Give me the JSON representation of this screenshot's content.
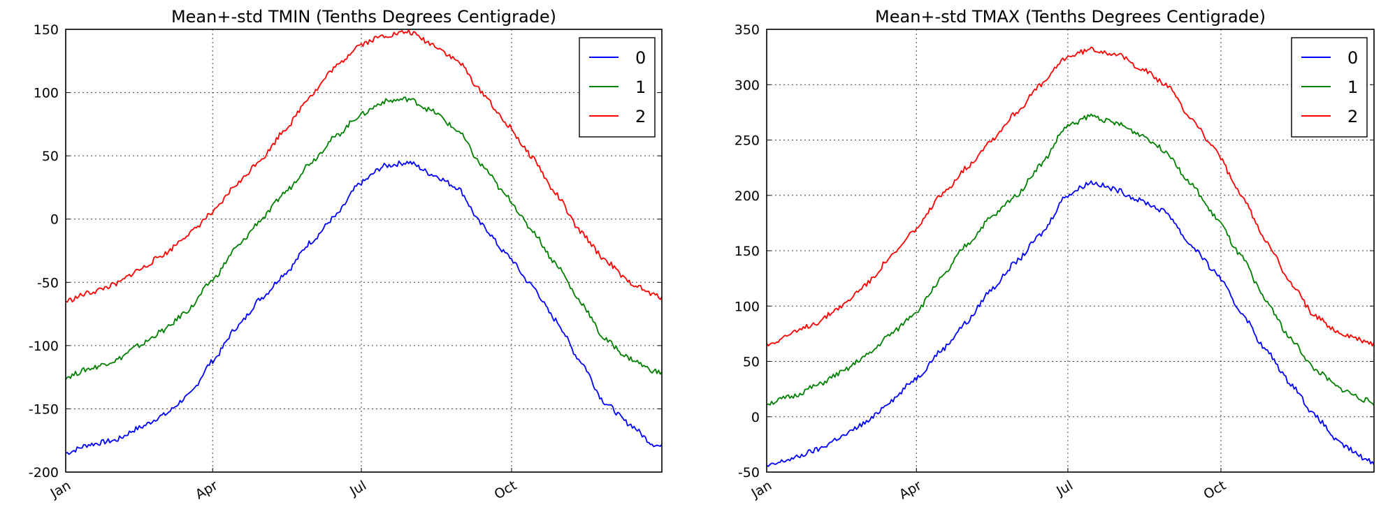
{
  "chart_data": [
    {
      "type": "line",
      "title": "Mean+-std   TMIN (Tenths Degrees Centigrade)",
      "xlabel": "",
      "ylabel": "",
      "x_ticks": [
        "Jan",
        "Apr",
        "Jul",
        "Oct"
      ],
      "x_tick_days": [
        0,
        90,
        181,
        273
      ],
      "y_ticks": [
        -200,
        -150,
        -100,
        -50,
        0,
        50,
        100,
        150
      ],
      "ylim": [
        -200,
        150
      ],
      "xlim": [
        0,
        365
      ],
      "grid": true,
      "legend_position": "top-right",
      "series": [
        {
          "name": "0",
          "color": "#0000ff",
          "x": [
            0,
            15,
            30,
            45,
            60,
            75,
            90,
            105,
            120,
            135,
            150,
            165,
            180,
            195,
            210,
            225,
            240,
            255,
            270,
            285,
            300,
            315,
            330,
            345,
            360,
            365
          ],
          "y": [
            -185,
            -178,
            -175,
            -165,
            -155,
            -140,
            -112,
            -85,
            -62,
            -42,
            -18,
            2,
            28,
            42,
            45,
            35,
            25,
            -5,
            -28,
            -52,
            -80,
            -112,
            -145,
            -162,
            -178,
            -180
          ]
        },
        {
          "name": "1",
          "color": "#008000",
          "x": [
            0,
            15,
            30,
            45,
            60,
            75,
            90,
            105,
            120,
            135,
            150,
            165,
            180,
            195,
            210,
            225,
            240,
            255,
            270,
            285,
            300,
            315,
            330,
            345,
            360,
            365
          ],
          "y": [
            -125,
            -118,
            -112,
            -100,
            -88,
            -72,
            -48,
            -22,
            0,
            22,
            45,
            65,
            82,
            93,
            95,
            85,
            70,
            42,
            18,
            -8,
            -35,
            -65,
            -95,
            -110,
            -120,
            -122
          ]
        },
        {
          "name": "2",
          "color": "#ff0000",
          "x": [
            0,
            15,
            30,
            45,
            60,
            75,
            90,
            105,
            120,
            135,
            150,
            165,
            180,
            195,
            210,
            225,
            240,
            255,
            270,
            285,
            300,
            315,
            330,
            345,
            360,
            365
          ],
          "y": [
            -65,
            -58,
            -52,
            -40,
            -28,
            -12,
            5,
            28,
            48,
            72,
            98,
            120,
            138,
            145,
            148,
            138,
            125,
            100,
            75,
            50,
            20,
            -10,
            -32,
            -50,
            -60,
            -62
          ]
        }
      ]
    },
    {
      "type": "line",
      "title": "Mean+-std   TMAX (Tenths Degrees Centigrade)",
      "xlabel": "",
      "ylabel": "",
      "x_ticks": [
        "Jan",
        "Apr",
        "Jul",
        "Oct"
      ],
      "x_tick_days": [
        0,
        90,
        181,
        273
      ],
      "y_ticks": [
        -50,
        0,
        50,
        100,
        150,
        200,
        250,
        300,
        350
      ],
      "ylim": [
        -50,
        350
      ],
      "xlim": [
        0,
        365
      ],
      "grid": true,
      "legend_position": "top-right",
      "series": [
        {
          "name": "0",
          "color": "#0000ff",
          "x": [
            0,
            15,
            30,
            45,
            60,
            75,
            90,
            105,
            120,
            135,
            150,
            165,
            180,
            195,
            210,
            225,
            240,
            255,
            270,
            285,
            300,
            315,
            330,
            345,
            360,
            365
          ],
          "y": [
            -45,
            -38,
            -30,
            -18,
            -5,
            15,
            35,
            60,
            85,
            115,
            140,
            165,
            200,
            212,
            205,
            195,
            185,
            155,
            130,
            95,
            60,
            30,
            0,
            -25,
            -38,
            -42
          ]
        },
        {
          "name": "1",
          "color": "#008000",
          "x": [
            0,
            15,
            30,
            45,
            60,
            75,
            90,
            105,
            120,
            135,
            150,
            165,
            180,
            195,
            210,
            225,
            240,
            255,
            270,
            285,
            300,
            315,
            330,
            345,
            360,
            365
          ],
          "y": [
            12,
            18,
            28,
            40,
            55,
            75,
            95,
            125,
            155,
            180,
            200,
            228,
            262,
            272,
            265,
            255,
            240,
            210,
            180,
            145,
            105,
            70,
            42,
            25,
            15,
            12
          ]
        },
        {
          "name": "2",
          "color": "#ff0000",
          "x": [
            0,
            15,
            30,
            45,
            60,
            75,
            90,
            105,
            120,
            135,
            150,
            165,
            180,
            195,
            210,
            225,
            240,
            255,
            270,
            285,
            300,
            315,
            330,
            345,
            360,
            365
          ],
          "y": [
            65,
            75,
            85,
            100,
            120,
            145,
            170,
            200,
            225,
            250,
            275,
            300,
            325,
            332,
            328,
            315,
            300,
            270,
            240,
            200,
            160,
            120,
            90,
            75,
            68,
            65
          ]
        }
      ]
    }
  ]
}
